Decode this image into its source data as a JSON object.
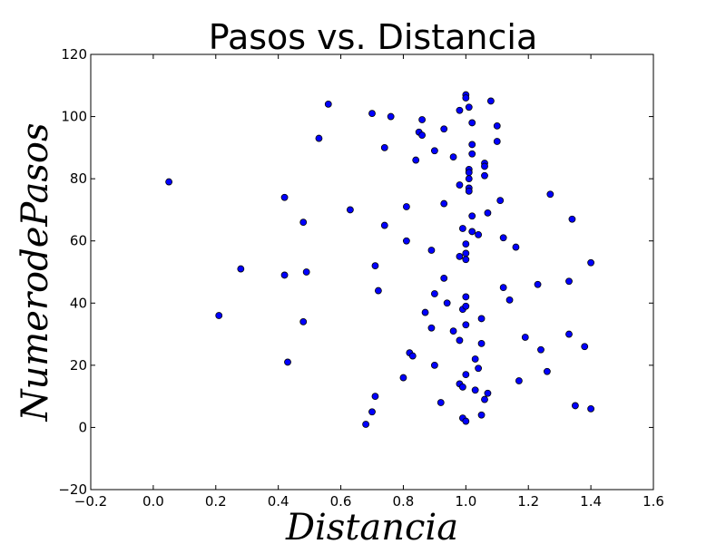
{
  "chart_data": {
    "type": "scatter",
    "title": "Pasos vs. Distancia",
    "xlabel": "Distancia",
    "ylabel": "NumerodePasos",
    "xlim": [
      -0.2,
      1.6
    ],
    "ylim": [
      -20,
      120
    ],
    "xticks": [
      "−0.2",
      "0.0",
      "0.2",
      "0.4",
      "0.6",
      "0.8",
      "1.0",
      "1.2",
      "1.4",
      "1.6"
    ],
    "yticks": [
      "−20",
      "0",
      "20",
      "40",
      "60",
      "80",
      "100",
      "120"
    ],
    "xtick_values": [
      -0.2,
      0.0,
      0.2,
      0.4,
      0.6,
      0.8,
      1.0,
      1.2,
      1.4,
      1.6
    ],
    "ytick_values": [
      -20,
      0,
      20,
      40,
      60,
      80,
      100,
      120
    ],
    "grid": false,
    "marker_color": "#0000ff",
    "points": [
      [
        0.05,
        79
      ],
      [
        0.21,
        36
      ],
      [
        0.28,
        51
      ],
      [
        0.42,
        74
      ],
      [
        0.42,
        49
      ],
      [
        0.43,
        21
      ],
      [
        0.48,
        66
      ],
      [
        0.48,
        34
      ],
      [
        0.49,
        50
      ],
      [
        0.53,
        93
      ],
      [
        0.56,
        104
      ],
      [
        0.63,
        70
      ],
      [
        0.68,
        1
      ],
      [
        0.7,
        5
      ],
      [
        0.7,
        101
      ],
      [
        0.71,
        10
      ],
      [
        0.71,
        52
      ],
      [
        0.72,
        44
      ],
      [
        0.74,
        90
      ],
      [
        0.74,
        65
      ],
      [
        0.76,
        100
      ],
      [
        0.8,
        16
      ],
      [
        0.81,
        71
      ],
      [
        0.81,
        60
      ],
      [
        0.82,
        24
      ],
      [
        0.83,
        23
      ],
      [
        0.84,
        86
      ],
      [
        0.85,
        95
      ],
      [
        0.86,
        99
      ],
      [
        0.86,
        94
      ],
      [
        0.87,
        37
      ],
      [
        0.89,
        57
      ],
      [
        0.89,
        32
      ],
      [
        0.9,
        89
      ],
      [
        0.9,
        43
      ],
      [
        0.9,
        20
      ],
      [
        0.92,
        8
      ],
      [
        0.93,
        96
      ],
      [
        0.93,
        72
      ],
      [
        0.93,
        48
      ],
      [
        0.94,
        40
      ],
      [
        0.96,
        31
      ],
      [
        0.96,
        87
      ],
      [
        0.98,
        102
      ],
      [
        0.98,
        78
      ],
      [
        0.98,
        55
      ],
      [
        0.98,
        28
      ],
      [
        0.98,
        14
      ],
      [
        0.99,
        3
      ],
      [
        0.99,
        13
      ],
      [
        0.99,
        38
      ],
      [
        0.99,
        64
      ],
      [
        1.0,
        107
      ],
      [
        1.0,
        106
      ],
      [
        1.0,
        42
      ],
      [
        1.0,
        59
      ],
      [
        1.0,
        56
      ],
      [
        1.0,
        54
      ],
      [
        1.0,
        33
      ],
      [
        1.0,
        39
      ],
      [
        1.0,
        17
      ],
      [
        1.0,
        2
      ],
      [
        1.01,
        103
      ],
      [
        1.01,
        83
      ],
      [
        1.01,
        82
      ],
      [
        1.01,
        80
      ],
      [
        1.01,
        77
      ],
      [
        1.01,
        76
      ],
      [
        1.02,
        98
      ],
      [
        1.02,
        91
      ],
      [
        1.02,
        88
      ],
      [
        1.02,
        68
      ],
      [
        1.02,
        63
      ],
      [
        1.03,
        12
      ],
      [
        1.03,
        22
      ],
      [
        1.04,
        62
      ],
      [
        1.04,
        19
      ],
      [
        1.05,
        27
      ],
      [
        1.05,
        4
      ],
      [
        1.05,
        35
      ],
      [
        1.06,
        85
      ],
      [
        1.06,
        84
      ],
      [
        1.06,
        81
      ],
      [
        1.06,
        9
      ],
      [
        1.07,
        69
      ],
      [
        1.07,
        11
      ],
      [
        1.08,
        105
      ],
      [
        1.1,
        97
      ],
      [
        1.1,
        92
      ],
      [
        1.11,
        73
      ],
      [
        1.12,
        61
      ],
      [
        1.12,
        45
      ],
      [
        1.14,
        41
      ],
      [
        1.16,
        58
      ],
      [
        1.17,
        15
      ],
      [
        1.19,
        29
      ],
      [
        1.23,
        46
      ],
      [
        1.24,
        25
      ],
      [
        1.26,
        18
      ],
      [
        1.27,
        75
      ],
      [
        1.33,
        47
      ],
      [
        1.33,
        30
      ],
      [
        1.34,
        67
      ],
      [
        1.35,
        7
      ],
      [
        1.38,
        26
      ],
      [
        1.4,
        53
      ],
      [
        1.4,
        6
      ]
    ]
  }
}
